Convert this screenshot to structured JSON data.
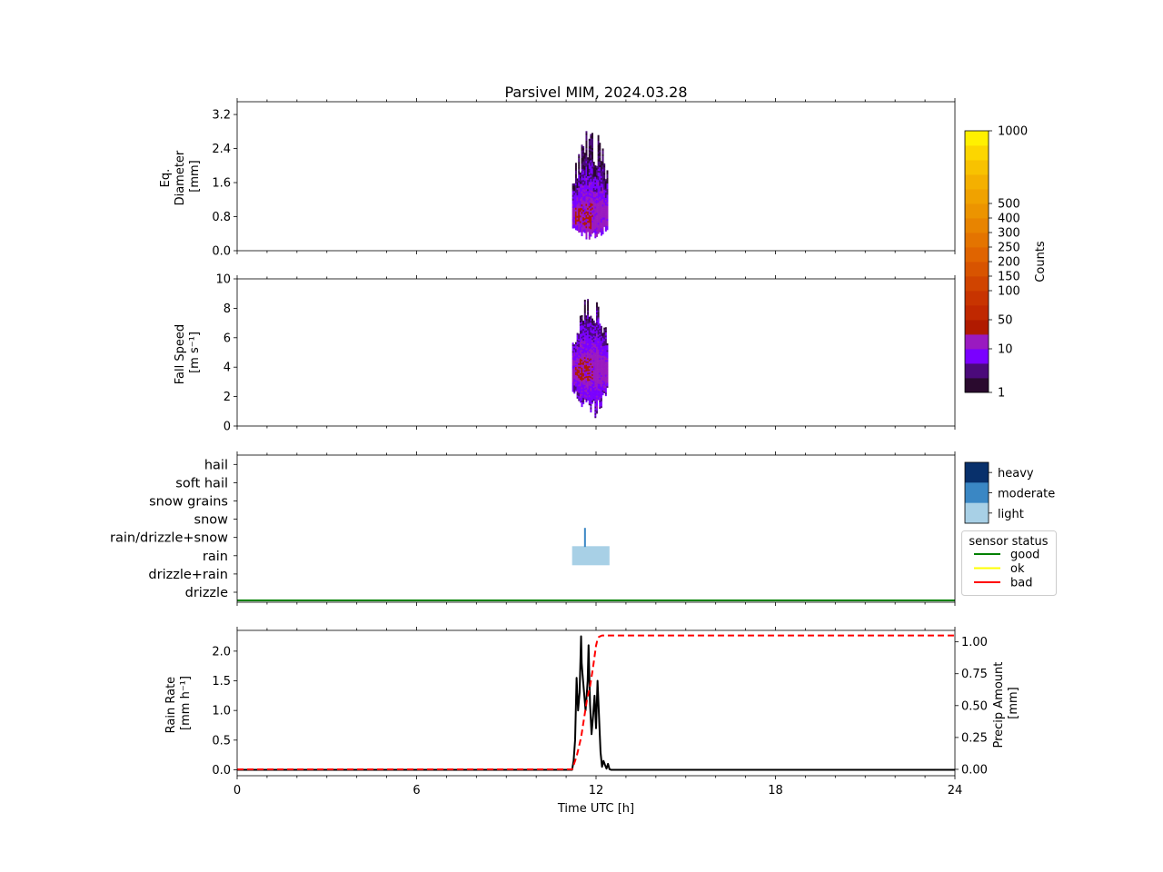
{
  "chart_data": {
    "title": "Parsivel MIM, 2024.03.28",
    "type": "multi-panel",
    "x_axis": {
      "label": "Time UTC [h]",
      "range": [
        0,
        24
      ],
      "ticks": [
        "0",
        "6",
        "12",
        "18",
        "24"
      ],
      "tick_values": [
        0,
        6,
        12,
        18,
        24
      ]
    },
    "panels": [
      {
        "type": "heatmap",
        "ylabel": [
          "Eq.",
          "Diameter",
          "[mm]"
        ],
        "ylim": [
          0,
          3.5
        ],
        "yticks": [
          "0.0",
          "0.8",
          "1.6",
          "2.4",
          "3.2"
        ],
        "ytick_values": [
          0,
          0.8,
          1.6,
          2.4,
          3.2
        ],
        "event": {
          "time_range": [
            11.2,
            12.4
          ],
          "value_range": [
            0.25,
            3.0
          ],
          "core_value": 0.8
        }
      },
      {
        "type": "heatmap",
        "ylabel": [
          "Fall Speed",
          "[m s⁻¹]"
        ],
        "ylim": [
          0,
          10
        ],
        "yticks": [
          "0",
          "2",
          "4",
          "6",
          "8",
          "10"
        ],
        "ytick_values": [
          0,
          2,
          4,
          6,
          8,
          10
        ],
        "event": {
          "time_range": [
            11.2,
            12.4
          ],
          "value_range": [
            0.4,
            9.0
          ],
          "core_value": 3.8
        }
      },
      {
        "type": "category",
        "categories": [
          "drizzle",
          "drizzle+rain",
          "rain",
          "rain/drizzle+snow",
          "snow",
          "snow grains",
          "soft hail",
          "hail"
        ],
        "events": [
          {
            "category": "rain",
            "start": 11.2,
            "end": 12.45,
            "intensity": "light"
          },
          {
            "category": "rain/drizzle+snow",
            "start": 11.6,
            "end": 11.66,
            "intensity": "moderate"
          }
        ],
        "sensor_status": "good"
      },
      {
        "type": "line",
        "ylabel": [
          "Rain Rate",
          "[mm h⁻¹]"
        ],
        "ylim": [
          -0.1,
          2.35
        ],
        "yticks": [
          "0.0",
          "0.5",
          "1.0",
          "1.5",
          "2.0"
        ],
        "ytick_values": [
          0,
          0.5,
          1.0,
          1.5,
          2.0
        ],
        "y2label": [
          "Precip Amount",
          "[mm]"
        ],
        "y2lim": [
          -0.05,
          1.09
        ],
        "y2ticks": [
          "0.00",
          "0.25",
          "0.50",
          "0.75",
          "1.00"
        ],
        "y2tick_values": [
          0,
          0.25,
          0.5,
          0.75,
          1.0
        ],
        "series": [
          {
            "name": "",
            "axis": "left",
            "style": "solid",
            "color": "#000000",
            "x": [
              0,
              11.2,
              11.25,
              11.3,
              11.35,
              11.4,
              11.45,
              11.5,
              11.52,
              11.55,
              11.6,
              11.65,
              11.7,
              11.72,
              11.75,
              11.8,
              11.85,
              11.9,
              11.95,
              12.0,
              12.05,
              12.1,
              12.15,
              12.2,
              12.25,
              12.3,
              12.35,
              12.4,
              12.45,
              12.5,
              24
            ],
            "y": [
              0,
              0,
              0.15,
              0.5,
              1.55,
              1.0,
              1.3,
              2.25,
              1.8,
              1.6,
              1.3,
              1.0,
              1.35,
              1.5,
              2.1,
              1.1,
              0.6,
              0.9,
              1.25,
              0.7,
              1.5,
              0.9,
              0.3,
              0.05,
              0.15,
              0.08,
              0.02,
              0.1,
              0.01,
              0,
              0
            ]
          },
          {
            "name": "",
            "axis": "right",
            "style": "dashed",
            "color": "#ff0000",
            "x": [
              0,
              11.2,
              11.35,
              11.5,
              11.6,
              11.7,
              11.8,
              11.9,
              12.0,
              12.05,
              12.1,
              12.2,
              12.3,
              24
            ],
            "y": [
              0,
              0,
              0.1,
              0.25,
              0.4,
              0.55,
              0.65,
              0.8,
              0.97,
              1.02,
              1.04,
              1.05,
              1.05,
              1.05
            ]
          }
        ]
      }
    ],
    "colorbar_counts": {
      "label": "Counts",
      "tick_labels": [
        "1",
        "10",
        "50",
        "100",
        "150",
        "200",
        "250",
        "300",
        "400",
        "500",
        "1000"
      ],
      "colors": [
        "#2a0a2e",
        "#4b0a7a",
        "#7a00ff",
        "#9a1ac0",
        "#b01a00",
        "#c02800",
        "#c83400",
        "#d04400",
        "#d85400",
        "#e06400",
        "#e47400",
        "#e88400",
        "#ec9400",
        "#f0a200",
        "#f4b000",
        "#f8c200",
        "#fcd600",
        "#fff000"
      ]
    },
    "colorbar_intensity": {
      "labels": [
        "heavy",
        "moderate",
        "light"
      ],
      "colors": [
        "#08306b",
        "#3a87c4",
        "#a8d0e6"
      ]
    },
    "legend": {
      "title": "sensor status",
      "entries": [
        {
          "label": "good",
          "color": "#008000"
        },
        {
          "label": "ok",
          "color": "#ffff00"
        },
        {
          "label": "bad",
          "color": "#ff0000"
        }
      ]
    }
  }
}
